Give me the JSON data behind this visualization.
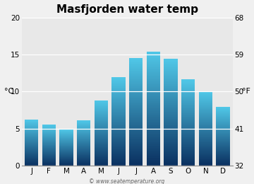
{
  "title": "Masfjorden water temp",
  "months": [
    "J",
    "F",
    "M",
    "A",
    "M",
    "J",
    "J",
    "A",
    "S",
    "O",
    "N",
    "D"
  ],
  "values_c": [
    6.2,
    5.5,
    4.9,
    6.1,
    8.8,
    11.9,
    14.5,
    15.4,
    14.4,
    11.6,
    10.0,
    7.9
  ],
  "ylabel_left": "°C",
  "ylabel_right": "°F",
  "yticks_c": [
    0,
    5,
    10,
    15,
    20
  ],
  "yticks_f": [
    32,
    41,
    50,
    59,
    68
  ],
  "ylim_c": [
    0,
    20
  ],
  "bar_color_top": "#50c8e8",
  "bar_color_bottom": "#0a3060",
  "bg_color": "#e8e8e8",
  "fig_bg_color": "#f0f0f0",
  "watermark": "© www.seatemperature.org",
  "title_fontsize": 11,
  "tick_fontsize": 7.5,
  "bar_width": 0.78,
  "gradient_steps": 200
}
